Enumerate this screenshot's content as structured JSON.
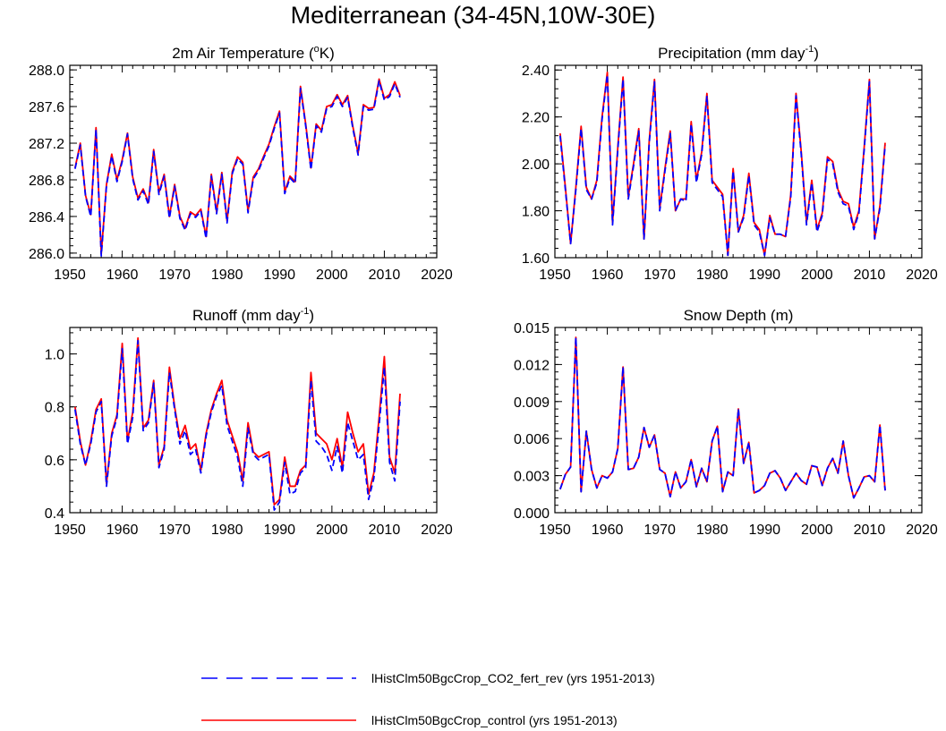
{
  "title": "Mediterranean (34-45N,10W-30E)",
  "legend": [
    {
      "label": "lHistClm50BgcCrop_CO2_fert_rev (yrs 1951-2013)",
      "color": "#0000ff",
      "style": "dashed"
    },
    {
      "label": "lHistClm50BgcCrop_control (yrs 1951-2013)",
      "color": "#ff0000",
      "style": "solid"
    }
  ],
  "chart_data": [
    {
      "type": "line",
      "title": "2m Air Temperature (",
      "title_sup": "o",
      "title_end": "K)",
      "xlim": [
        1950,
        2020
      ],
      "xticks": [
        1950,
        1960,
        1970,
        1980,
        1990,
        2000,
        2010,
        2020
      ],
      "ylim": [
        285.95,
        288.05
      ],
      "yticks": [
        286.0,
        286.4,
        286.8,
        287.2,
        287.6,
        288.0
      ],
      "ytick_labels": [
        "286.0",
        "286.4",
        "286.8",
        "287.2",
        "287.6",
        "288.0"
      ],
      "x_start": 1951,
      "series": [
        {
          "name": "lHistClm50BgcCrop_control (yrs 1951-2013)",
          "color": "#ff0000",
          "style": "solid",
          "values": [
            286.93,
            287.2,
            286.63,
            286.42,
            287.37,
            285.99,
            286.75,
            287.08,
            286.8,
            287.02,
            287.31,
            286.83,
            286.6,
            286.7,
            286.55,
            287.13,
            286.66,
            286.86,
            286.4,
            286.75,
            286.4,
            286.27,
            286.45,
            286.41,
            286.48,
            286.18,
            286.86,
            286.45,
            286.88,
            286.35,
            286.89,
            287.05,
            286.99,
            286.46,
            286.83,
            286.92,
            287.06,
            287.19,
            287.38,
            287.55,
            286.67,
            286.84,
            286.78,
            287.82,
            287.41,
            286.93,
            287.41,
            287.34,
            287.6,
            287.62,
            287.73,
            287.62,
            287.72,
            287.38,
            287.09,
            287.62,
            287.58,
            287.59,
            287.9,
            287.69,
            287.73,
            287.87,
            287.72
          ]
        },
        {
          "name": "lHistClm50BgcCrop_CO2_fert_rev (yrs 1951-2013)",
          "color": "#0000ff",
          "style": "dashed",
          "values": [
            286.92,
            287.18,
            286.62,
            286.4,
            287.35,
            285.97,
            286.74,
            287.06,
            286.78,
            287.0,
            287.3,
            286.81,
            286.58,
            286.68,
            286.53,
            287.11,
            286.64,
            286.84,
            286.38,
            286.73,
            286.38,
            286.25,
            286.43,
            286.39,
            286.46,
            286.16,
            286.84,
            286.43,
            286.86,
            286.33,
            286.87,
            287.03,
            286.97,
            286.44,
            286.81,
            286.9,
            287.04,
            287.17,
            287.36,
            287.53,
            286.65,
            286.82,
            286.76,
            287.8,
            287.39,
            286.91,
            287.39,
            287.32,
            287.58,
            287.6,
            287.71,
            287.6,
            287.7,
            287.36,
            287.07,
            287.6,
            287.56,
            287.57,
            287.88,
            287.67,
            287.71,
            287.85,
            287.7
          ]
        }
      ]
    },
    {
      "type": "line",
      "title": "Precipitation (mm day",
      "title_sup": "-1",
      "title_end": ")",
      "xlim": [
        1950,
        2020
      ],
      "xticks": [
        1950,
        1960,
        1970,
        1980,
        1990,
        2000,
        2010,
        2020
      ],
      "ylim": [
        1.6,
        2.42
      ],
      "yticks": [
        1.6,
        1.8,
        2.0,
        2.2,
        2.4
      ],
      "ytick_labels": [
        "1.60",
        "1.80",
        "2.00",
        "2.20",
        "2.40"
      ],
      "x_start": 1951,
      "series": [
        {
          "name": "lHistClm50BgcCrop_control (yrs 1951-2013)",
          "color": "#ff0000",
          "style": "solid",
          "values": [
            2.13,
            1.9,
            1.66,
            1.9,
            2.16,
            1.9,
            1.85,
            1.93,
            2.2,
            2.39,
            1.75,
            2.07,
            2.37,
            1.86,
            2.0,
            2.15,
            1.68,
            2.1,
            2.36,
            1.81,
            1.98,
            2.14,
            1.8,
            1.85,
            1.85,
            2.18,
            1.93,
            2.05,
            2.3,
            1.93,
            1.9,
            1.87,
            1.61,
            1.98,
            1.71,
            1.78,
            1.96,
            1.75,
            1.72,
            1.61,
            1.78,
            1.7,
            1.7,
            1.69,
            1.87,
            2.3,
            2.05,
            1.75,
            1.93,
            1.72,
            1.79,
            2.03,
            2.01,
            1.89,
            1.84,
            1.83,
            1.73,
            1.8,
            2.07,
            2.36,
            1.68,
            1.82,
            2.09
          ]
        },
        {
          "name": "lHistClm50BgcCrop_CO2_fert_rev (yrs 1951-2013)",
          "color": "#0000ff",
          "style": "dashed",
          "values": [
            2.12,
            1.89,
            1.66,
            1.89,
            2.15,
            1.89,
            1.85,
            1.92,
            2.19,
            2.38,
            1.74,
            2.06,
            2.36,
            1.85,
            1.99,
            2.14,
            1.68,
            2.09,
            2.35,
            1.8,
            1.97,
            2.13,
            1.8,
            1.85,
            1.84,
            2.17,
            1.92,
            2.04,
            2.29,
            1.92,
            1.89,
            1.86,
            1.61,
            1.97,
            1.71,
            1.77,
            1.95,
            1.74,
            1.71,
            1.61,
            1.77,
            1.7,
            1.7,
            1.69,
            1.86,
            2.29,
            2.04,
            1.74,
            1.92,
            1.71,
            1.78,
            2.02,
            2.0,
            1.88,
            1.83,
            1.82,
            1.72,
            1.79,
            2.06,
            2.35,
            1.68,
            1.81,
            2.08
          ]
        }
      ]
    },
    {
      "type": "line",
      "title": "Runoff (mm day",
      "title_sup": "-1",
      "title_end": ")",
      "xlim": [
        1950,
        2020
      ],
      "xticks": [
        1950,
        1960,
        1970,
        1980,
        1990,
        2000,
        2010,
        2020
      ],
      "ylim": [
        0.4,
        1.1
      ],
      "yticks": [
        0.4,
        0.6,
        0.8,
        1.0
      ],
      "ytick_labels": [
        "0.4",
        "0.6",
        "0.8",
        "1.0"
      ],
      "x_start": 1951,
      "series": [
        {
          "name": "lHistClm50BgcCrop_control (yrs 1951-2013)",
          "color": "#ff0000",
          "style": "solid",
          "values": [
            0.8,
            0.67,
            0.58,
            0.67,
            0.79,
            0.83,
            0.51,
            0.7,
            0.77,
            1.04,
            0.67,
            0.78,
            1.06,
            0.72,
            0.75,
            0.9,
            0.58,
            0.65,
            0.95,
            0.8,
            0.68,
            0.73,
            0.64,
            0.66,
            0.56,
            0.7,
            0.79,
            0.85,
            0.9,
            0.75,
            0.69,
            0.63,
            0.52,
            0.74,
            0.63,
            0.61,
            0.62,
            0.63,
            0.43,
            0.45,
            0.61,
            0.5,
            0.5,
            0.56,
            0.58,
            0.93,
            0.7,
            0.68,
            0.66,
            0.6,
            0.68,
            0.57,
            0.78,
            0.7,
            0.63,
            0.66,
            0.47,
            0.55,
            0.76,
            0.99,
            0.61,
            0.55,
            0.85
          ]
        },
        {
          "name": "lHistClm50BgcCrop_CO2_fert_rev (yrs 1951-2013)",
          "color": "#0000ff",
          "style": "dashed",
          "values": [
            0.79,
            0.66,
            0.58,
            0.66,
            0.78,
            0.82,
            0.5,
            0.69,
            0.76,
            1.02,
            0.66,
            0.76,
            1.05,
            0.71,
            0.74,
            0.89,
            0.57,
            0.64,
            0.93,
            0.79,
            0.66,
            0.71,
            0.62,
            0.64,
            0.55,
            0.69,
            0.78,
            0.84,
            0.88,
            0.73,
            0.67,
            0.61,
            0.5,
            0.72,
            0.62,
            0.6,
            0.61,
            0.62,
            0.41,
            0.44,
            0.59,
            0.47,
            0.48,
            0.55,
            0.57,
            0.9,
            0.67,
            0.65,
            0.62,
            0.56,
            0.65,
            0.55,
            0.74,
            0.67,
            0.6,
            0.62,
            0.45,
            0.53,
            0.73,
            0.95,
            0.59,
            0.52,
            0.82
          ]
        }
      ]
    },
    {
      "type": "line",
      "title": "Snow Depth (m)",
      "title_sup": "",
      "title_end": "",
      "xlim": [
        1950,
        2020
      ],
      "xticks": [
        1950,
        1960,
        1970,
        1980,
        1990,
        2000,
        2010,
        2020
      ],
      "ylim": [
        0.0,
        0.015
      ],
      "yticks": [
        0.0,
        0.003,
        0.006,
        0.009,
        0.012,
        0.015
      ],
      "ytick_labels": [
        "0.000",
        "0.003",
        "0.006",
        "0.009",
        "0.012",
        "0.015"
      ],
      "x_start": 1951,
      "series": [
        {
          "name": "lHistClm50BgcCrop_control (yrs 1951-2013)",
          "color": "#ff0000",
          "style": "solid",
          "values": [
            0.0019,
            0.0031,
            0.0037,
            0.0142,
            0.0017,
            0.0066,
            0.0035,
            0.002,
            0.003,
            0.0028,
            0.0033,
            0.0052,
            0.0118,
            0.0035,
            0.0036,
            0.0045,
            0.0069,
            0.0053,
            0.0063,
            0.0035,
            0.0032,
            0.0013,
            0.0033,
            0.002,
            0.0025,
            0.0043,
            0.0021,
            0.0036,
            0.0025,
            0.0058,
            0.007,
            0.0017,
            0.0033,
            0.003,
            0.0084,
            0.004,
            0.0057,
            0.0016,
            0.0018,
            0.0022,
            0.0032,
            0.0034,
            0.0028,
            0.0018,
            0.0025,
            0.0032,
            0.0026,
            0.0023,
            0.0038,
            0.0037,
            0.0022,
            0.0036,
            0.0044,
            0.0032,
            0.0058,
            0.003,
            0.0012,
            0.002,
            0.0029,
            0.003,
            0.0025,
            0.0071,
            0.0018
          ]
        },
        {
          "name": "lHistClm50BgcCrop_CO2_fert_rev (yrs 1951-2013)",
          "color": "#0000ff",
          "style": "dashed",
          "values": [
            0.0019,
            0.0031,
            0.0037,
            0.0142,
            0.0017,
            0.0066,
            0.0035,
            0.002,
            0.003,
            0.0028,
            0.0033,
            0.0052,
            0.0118,
            0.0035,
            0.0036,
            0.0045,
            0.0069,
            0.0053,
            0.0063,
            0.0035,
            0.0032,
            0.0013,
            0.0033,
            0.002,
            0.0025,
            0.0043,
            0.0021,
            0.0036,
            0.0025,
            0.0058,
            0.007,
            0.0017,
            0.0033,
            0.003,
            0.0084,
            0.004,
            0.0057,
            0.0016,
            0.0018,
            0.0022,
            0.0032,
            0.0034,
            0.0028,
            0.0018,
            0.0025,
            0.0032,
            0.0026,
            0.0023,
            0.0038,
            0.0037,
            0.0022,
            0.0036,
            0.0044,
            0.0032,
            0.0058,
            0.003,
            0.0012,
            0.002,
            0.0029,
            0.003,
            0.0025,
            0.0071,
            0.0018
          ]
        }
      ]
    }
  ]
}
